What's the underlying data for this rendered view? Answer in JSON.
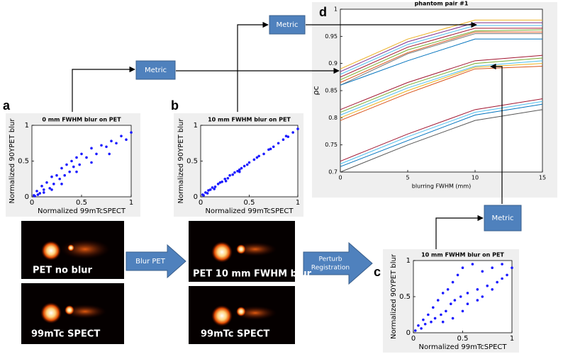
{
  "panel_labels": [
    "a",
    "b",
    "c",
    "d"
  ],
  "metric_boxes": [
    "Metric",
    "Metric",
    "Metric"
  ],
  "block_arrows": [
    [
      "Blur PET"
    ],
    [
      "Perturb",
      "Registration"
    ]
  ],
  "images": [
    {
      "label": "PET no blur"
    },
    {
      "label": "99mTc SPECT"
    },
    {
      "label": "PET 10 mm FWHM blur"
    },
    {
      "label": "99mTc SPECT"
    }
  ],
  "chart_data": [
    {
      "type": "scatter",
      "title": "0 mm FWHM blur on PET",
      "x_label": "Normalized 99mTcSPECT",
      "y_label": "Normalized 90YPET blur",
      "color": "#1a1aff",
      "x": [
        0.02,
        0.05,
        0.08,
        0.1,
        0.12,
        0.15,
        0.18,
        0.2,
        0.22,
        0.25,
        0.28,
        0.3,
        0.33,
        0.35,
        0.38,
        0.4,
        0.42,
        0.45,
        0.48,
        0.5,
        0.55,
        0.6,
        0.65,
        0.7,
        0.75,
        0.8,
        0.85,
        0.9,
        0.95,
        1.0,
        0.03,
        0.06,
        0.12,
        0.2,
        0.3,
        0.45,
        0.6,
        0.78
      ],
      "y": [
        0.02,
        0.08,
        0.05,
        0.15,
        0.1,
        0.2,
        0.12,
        0.28,
        0.18,
        0.3,
        0.25,
        0.4,
        0.3,
        0.45,
        0.35,
        0.5,
        0.42,
        0.55,
        0.45,
        0.6,
        0.55,
        0.68,
        0.6,
        0.72,
        0.7,
        0.78,
        0.75,
        0.85,
        0.8,
        0.9,
        0.01,
        0.03,
        0.06,
        0.1,
        0.18,
        0.35,
        0.48,
        0.6
      ],
      "xlim": [
        0,
        1
      ],
      "ylim": [
        0,
        1
      ],
      "xticks": [
        0,
        0.5,
        1
      ],
      "yticks": [
        0,
        0.5,
        1
      ],
      "grid": false
    },
    {
      "type": "scatter",
      "title": "10 mm FWHM blur on PET",
      "x_label": "Normalized 99mTcSPECT",
      "y_label": "Normalized 90YPET blur",
      "color": "#1a1aff",
      "x": [
        0.02,
        0.05,
        0.08,
        0.1,
        0.12,
        0.15,
        0.18,
        0.2,
        0.22,
        0.25,
        0.28,
        0.3,
        0.33,
        0.35,
        0.38,
        0.4,
        0.42,
        0.45,
        0.48,
        0.5,
        0.55,
        0.6,
        0.65,
        0.7,
        0.75,
        0.8,
        0.85,
        0.9,
        0.95,
        1.0,
        0.03,
        0.07,
        0.14,
        0.26,
        0.4,
        0.58,
        0.72,
        0.88
      ],
      "y": [
        0.03,
        0.06,
        0.09,
        0.1,
        0.13,
        0.14,
        0.18,
        0.2,
        0.21,
        0.25,
        0.26,
        0.3,
        0.31,
        0.34,
        0.36,
        0.38,
        0.4,
        0.43,
        0.45,
        0.48,
        0.52,
        0.57,
        0.6,
        0.66,
        0.7,
        0.75,
        0.8,
        0.84,
        0.9,
        0.95,
        0.02,
        0.05,
        0.11,
        0.22,
        0.35,
        0.55,
        0.67,
        0.85
      ],
      "xlim": [
        0,
        1
      ],
      "ylim": [
        0,
        1
      ],
      "xticks": [
        0,
        0.5,
        1
      ],
      "yticks": [
        0,
        0.5,
        1
      ],
      "grid": false
    },
    {
      "type": "scatter",
      "title": "10 mm FWHM blur on PET",
      "x_label": "Normalized 99mTcSPECT",
      "y_label": "Normalized 90YPET blur",
      "color": "#1a1aff",
      "x": [
        0.02,
        0.05,
        0.08,
        0.1,
        0.12,
        0.15,
        0.18,
        0.2,
        0.22,
        0.25,
        0.28,
        0.3,
        0.33,
        0.35,
        0.38,
        0.4,
        0.42,
        0.45,
        0.48,
        0.5,
        0.55,
        0.6,
        0.65,
        0.7,
        0.75,
        0.8,
        0.85,
        0.9,
        0.95,
        1.0,
        0.3,
        0.4,
        0.5,
        0.55,
        0.65,
        0.7,
        0.8,
        0.9
      ],
      "y": [
        0.03,
        0.1,
        0.06,
        0.18,
        0.12,
        0.25,
        0.15,
        0.35,
        0.2,
        0.45,
        0.25,
        0.55,
        0.3,
        0.6,
        0.4,
        0.7,
        0.45,
        0.8,
        0.5,
        0.9,
        0.55,
        0.95,
        0.6,
        0.85,
        0.65,
        0.9,
        0.7,
        0.95,
        0.8,
        0.9,
        0.15,
        0.2,
        0.3,
        0.4,
        0.45,
        0.5,
        0.6,
        0.75
      ],
      "xlim": [
        0,
        1
      ],
      "ylim": [
        0,
        1
      ],
      "xticks": [
        0,
        0.5,
        1
      ],
      "yticks": [
        0,
        0.5,
        1
      ],
      "grid": false
    },
    {
      "type": "line",
      "title": "phantom pair #1",
      "x_label": "blurring FWHM (mm)",
      "y_label": "ρc",
      "x": [
        0,
        5,
        10,
        15
      ],
      "series": [
        {
          "color": "#edb120",
          "values": [
            0.89,
            0.945,
            0.98,
            0.98
          ]
        },
        {
          "color": "#7e2f8e",
          "values": [
            0.885,
            0.94,
            0.975,
            0.975
          ]
        },
        {
          "color": "#4dbeee",
          "values": [
            0.88,
            0.935,
            0.97,
            0.97
          ]
        },
        {
          "color": "#a2142f",
          "values": [
            0.875,
            0.93,
            0.965,
            0.965
          ]
        },
        {
          "color": "#77ac30",
          "values": [
            0.87,
            0.925,
            0.96,
            0.962
          ]
        },
        {
          "color": "#d95319",
          "values": [
            0.865,
            0.92,
            0.958,
            0.958
          ]
        },
        {
          "color": "#777777",
          "values": [
            0.86,
            0.918,
            0.955,
            0.955
          ]
        },
        {
          "color": "#0072bd",
          "values": [
            0.86,
            0.905,
            0.945,
            0.945
          ]
        },
        {
          "color": "#a2142f",
          "values": [
            0.815,
            0.865,
            0.905,
            0.915
          ]
        },
        {
          "color": "#77ac30",
          "values": [
            0.81,
            0.86,
            0.9,
            0.91
          ]
        },
        {
          "color": "#4dbeee",
          "values": [
            0.805,
            0.855,
            0.895,
            0.905
          ]
        },
        {
          "color": "#edb120",
          "values": [
            0.8,
            0.85,
            0.893,
            0.9
          ]
        },
        {
          "color": "#d95319",
          "values": [
            0.795,
            0.845,
            0.89,
            0.895
          ]
        },
        {
          "color": "#a2142f",
          "values": [
            0.72,
            0.77,
            0.815,
            0.835
          ]
        },
        {
          "color": "#4dbeee",
          "values": [
            0.715,
            0.765,
            0.81,
            0.83
          ]
        },
        {
          "color": "#0072bd",
          "values": [
            0.71,
            0.758,
            0.805,
            0.825
          ]
        },
        {
          "color": "#555555",
          "values": [
            0.7,
            0.75,
            0.795,
            0.815
          ]
        }
      ],
      "xlim": [
        0,
        15
      ],
      "ylim": [
        0.7,
        1
      ],
      "xticks": [
        0,
        5,
        10,
        15
      ],
      "yticks": [
        0.7,
        0.75,
        0.8,
        0.85,
        0.9,
        0.95,
        1
      ],
      "grid": false
    }
  ]
}
